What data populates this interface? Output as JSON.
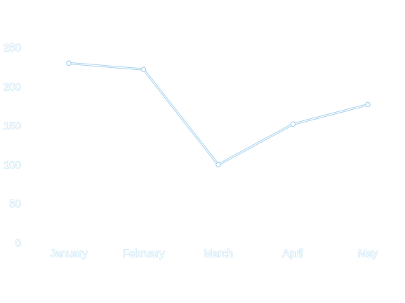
{
  "chart_data": {
    "type": "line",
    "title": "",
    "xlabel": "",
    "ylabel": "",
    "categories": [
      "January",
      "February",
      "March",
      "April",
      "May"
    ],
    "series": [
      {
        "values": [
          230,
          222,
          100,
          152,
          177
        ]
      }
    ],
    "ylim": [
      0,
      250
    ],
    "yticks": [
      0,
      50,
      100,
      150,
      200,
      250
    ],
    "grid": false,
    "legend": "none",
    "colors": {
      "line": "#cfe6f5",
      "line_outline": "#a9d2ee",
      "point_fill": "#ffffff",
      "tick_text_outline": "#b6dcf2"
    }
  }
}
